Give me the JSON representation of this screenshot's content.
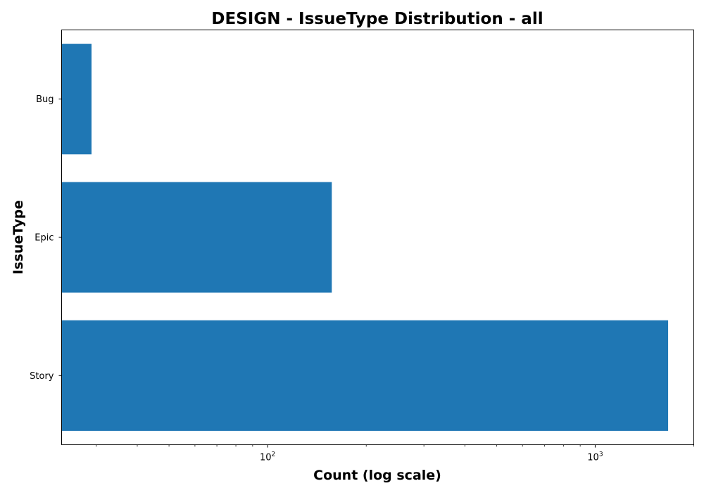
{
  "chart_data": {
    "type": "bar",
    "orientation": "horizontal",
    "title": "DESIGN - IssueType Distribution - all",
    "xlabel": "Count (log scale)",
    "ylabel": "IssueType",
    "x_scale": "log",
    "xlim": [
      23.5,
      2000
    ],
    "categories": [
      "Story",
      "Epic",
      "Bug"
    ],
    "values": [
      1670,
      157,
      29
    ],
    "x_major_ticks": [
      100,
      1000
    ],
    "x_major_tick_labels": [
      {
        "base": "10",
        "exp": "2"
      },
      {
        "base": "10",
        "exp": "3"
      }
    ],
    "bar_color": "#1f77b4",
    "grid": false,
    "legend": "none"
  }
}
